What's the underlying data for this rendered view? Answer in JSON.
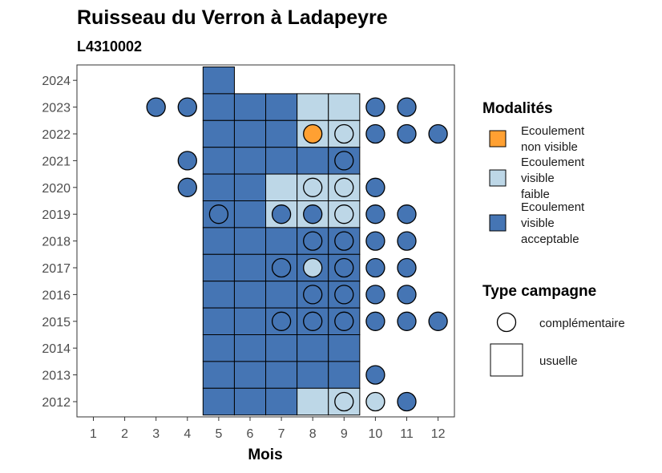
{
  "chart_data": {
    "type": "heatmap",
    "title": "Ruisseau du Verron à Ladapeyre",
    "subtitle": "L4310002",
    "xlabel": "Mois",
    "x_ticks": [
      "1",
      "2",
      "3",
      "4",
      "5",
      "6",
      "7",
      "8",
      "9",
      "10",
      "11",
      "12"
    ],
    "y_ticks": [
      "2012",
      "2013",
      "2014",
      "2015",
      "2016",
      "2017",
      "2018",
      "2019",
      "2020",
      "2021",
      "2022",
      "2023",
      "2024"
    ],
    "colors": {
      "Ecoulement non visible": "#FFA032",
      "Ecoulement visible faible": "#BDD7E7",
      "Ecoulement visible acceptable": "#4575B4"
    },
    "legend_modalites": {
      "title": "Modalités",
      "items": [
        {
          "key": "Ecoulement non visible",
          "lines": [
            "Ecoulement",
            "non visible"
          ]
        },
        {
          "key": "Ecoulement visible faible",
          "lines": [
            "Ecoulement",
            "visible",
            "faible"
          ]
        },
        {
          "key": "Ecoulement visible acceptable",
          "lines": [
            "Ecoulement",
            "visible",
            "acceptable"
          ]
        }
      ]
    },
    "legend_type": {
      "title": "Type campagne",
      "items": [
        {
          "shape": "circle",
          "label": "complémentaire"
        },
        {
          "shape": "square",
          "label": "usuelle"
        }
      ]
    },
    "usuelle": [
      {
        "year": 2024,
        "month": 5,
        "value": "Ecoulement visible acceptable"
      },
      {
        "year": 2023,
        "month": 5,
        "value": "Ecoulement visible acceptable"
      },
      {
        "year": 2023,
        "month": 6,
        "value": "Ecoulement visible acceptable"
      },
      {
        "year": 2023,
        "month": 7,
        "value": "Ecoulement visible acceptable"
      },
      {
        "year": 2023,
        "month": 8,
        "value": "Ecoulement visible faible"
      },
      {
        "year": 2023,
        "month": 9,
        "value": "Ecoulement visible faible"
      },
      {
        "year": 2022,
        "month": 5,
        "value": "Ecoulement visible acceptable"
      },
      {
        "year": 2022,
        "month": 6,
        "value": "Ecoulement visible acceptable"
      },
      {
        "year": 2022,
        "month": 7,
        "value": "Ecoulement visible acceptable"
      },
      {
        "year": 2022,
        "month": 8,
        "value": "Ecoulement visible faible"
      },
      {
        "year": 2022,
        "month": 9,
        "value": "Ecoulement visible faible"
      },
      {
        "year": 2021,
        "month": 5,
        "value": "Ecoulement visible acceptable"
      },
      {
        "year": 2021,
        "month": 6,
        "value": "Ecoulement visible acceptable"
      },
      {
        "year": 2021,
        "month": 7,
        "value": "Ecoulement visible acceptable"
      },
      {
        "year": 2021,
        "month": 8,
        "value": "Ecoulement visible acceptable"
      },
      {
        "year": 2021,
        "month": 9,
        "value": "Ecoulement visible acceptable"
      },
      {
        "year": 2020,
        "month": 5,
        "value": "Ecoulement visible acceptable"
      },
      {
        "year": 2020,
        "month": 6,
        "value": "Ecoulement visible acceptable"
      },
      {
        "year": 2020,
        "month": 7,
        "value": "Ecoulement visible faible"
      },
      {
        "year": 2020,
        "month": 8,
        "value": "Ecoulement visible faible"
      },
      {
        "year": 2020,
        "month": 9,
        "value": "Ecoulement visible faible"
      },
      {
        "year": 2019,
        "month": 5,
        "value": "Ecoulement visible acceptable"
      },
      {
        "year": 2019,
        "month": 6,
        "value": "Ecoulement visible acceptable"
      },
      {
        "year": 2019,
        "month": 7,
        "value": "Ecoulement visible faible"
      },
      {
        "year": 2019,
        "month": 8,
        "value": "Ecoulement visible faible"
      },
      {
        "year": 2019,
        "month": 9,
        "value": "Ecoulement visible faible"
      },
      {
        "year": 2018,
        "month": 5,
        "value": "Ecoulement visible acceptable"
      },
      {
        "year": 2018,
        "month": 6,
        "value": "Ecoulement visible acceptable"
      },
      {
        "year": 2018,
        "month": 7,
        "value": "Ecoulement visible acceptable"
      },
      {
        "year": 2018,
        "month": 8,
        "value": "Ecoulement visible acceptable"
      },
      {
        "year": 2018,
        "month": 9,
        "value": "Ecoulement visible acceptable"
      },
      {
        "year": 2017,
        "month": 5,
        "value": "Ecoulement visible acceptable"
      },
      {
        "year": 2017,
        "month": 6,
        "value": "Ecoulement visible acceptable"
      },
      {
        "year": 2017,
        "month": 7,
        "value": "Ecoulement visible acceptable"
      },
      {
        "year": 2017,
        "month": 8,
        "value": "Ecoulement visible acceptable"
      },
      {
        "year": 2017,
        "month": 9,
        "value": "Ecoulement visible acceptable"
      },
      {
        "year": 2016,
        "month": 5,
        "value": "Ecoulement visible acceptable"
      },
      {
        "year": 2016,
        "month": 6,
        "value": "Ecoulement visible acceptable"
      },
      {
        "year": 2016,
        "month": 7,
        "value": "Ecoulement visible acceptable"
      },
      {
        "year": 2016,
        "month": 8,
        "value": "Ecoulement visible acceptable"
      },
      {
        "year": 2016,
        "month": 9,
        "value": "Ecoulement visible acceptable"
      },
      {
        "year": 2015,
        "month": 5,
        "value": "Ecoulement visible acceptable"
      },
      {
        "year": 2015,
        "month": 6,
        "value": "Ecoulement visible acceptable"
      },
      {
        "year": 2015,
        "month": 7,
        "value": "Ecoulement visible acceptable"
      },
      {
        "year": 2015,
        "month": 8,
        "value": "Ecoulement visible acceptable"
      },
      {
        "year": 2015,
        "month": 9,
        "value": "Ecoulement visible acceptable"
      },
      {
        "year": 2014,
        "month": 5,
        "value": "Ecoulement visible acceptable"
      },
      {
        "year": 2014,
        "month": 6,
        "value": "Ecoulement visible acceptable"
      },
      {
        "year": 2014,
        "month": 7,
        "value": "Ecoulement visible acceptable"
      },
      {
        "year": 2014,
        "month": 8,
        "value": "Ecoulement visible acceptable"
      },
      {
        "year": 2014,
        "month": 9,
        "value": "Ecoulement visible acceptable"
      },
      {
        "year": 2013,
        "month": 5,
        "value": "Ecoulement visible acceptable"
      },
      {
        "year": 2013,
        "month": 6,
        "value": "Ecoulement visible acceptable"
      },
      {
        "year": 2013,
        "month": 7,
        "value": "Ecoulement visible acceptable"
      },
      {
        "year": 2013,
        "month": 8,
        "value": "Ecoulement visible acceptable"
      },
      {
        "year": 2013,
        "month": 9,
        "value": "Ecoulement visible acceptable"
      },
      {
        "year": 2012,
        "month": 5,
        "value": "Ecoulement visible acceptable"
      },
      {
        "year": 2012,
        "month": 6,
        "value": "Ecoulement visible acceptable"
      },
      {
        "year": 2012,
        "month": 7,
        "value": "Ecoulement visible acceptable"
      },
      {
        "year": 2012,
        "month": 8,
        "value": "Ecoulement visible faible"
      },
      {
        "year": 2012,
        "month": 9,
        "value": "Ecoulement visible faible"
      }
    ],
    "complementaire": [
      {
        "year": 2023,
        "month": 3,
        "value": "Ecoulement visible acceptable"
      },
      {
        "year": 2023,
        "month": 4,
        "value": "Ecoulement visible acceptable"
      },
      {
        "year": 2023,
        "month": 10,
        "value": "Ecoulement visible acceptable"
      },
      {
        "year": 2023,
        "month": 11,
        "value": "Ecoulement visible acceptable"
      },
      {
        "year": 2022,
        "month": 8,
        "value": "Ecoulement non visible"
      },
      {
        "year": 2022,
        "month": 9,
        "value": "Ecoulement visible faible"
      },
      {
        "year": 2022,
        "month": 10,
        "value": "Ecoulement visible acceptable"
      },
      {
        "year": 2022,
        "month": 11,
        "value": "Ecoulement visible acceptable"
      },
      {
        "year": 2022,
        "month": 12,
        "value": "Ecoulement visible acceptable"
      },
      {
        "year": 2021,
        "month": 4,
        "value": "Ecoulement visible acceptable"
      },
      {
        "year": 2021,
        "month": 9,
        "value": "Ecoulement visible acceptable"
      },
      {
        "year": 2020,
        "month": 4,
        "value": "Ecoulement visible acceptable"
      },
      {
        "year": 2020,
        "month": 8,
        "value": "Ecoulement visible faible"
      },
      {
        "year": 2020,
        "month": 9,
        "value": "Ecoulement visible faible"
      },
      {
        "year": 2020,
        "month": 10,
        "value": "Ecoulement visible acceptable"
      },
      {
        "year": 2019,
        "month": 5,
        "value": "Ecoulement visible acceptable"
      },
      {
        "year": 2019,
        "month": 7,
        "value": "Ecoulement visible acceptable"
      },
      {
        "year": 2019,
        "month": 8,
        "value": "Ecoulement visible acceptable"
      },
      {
        "year": 2019,
        "month": 9,
        "value": "Ecoulement visible faible"
      },
      {
        "year": 2019,
        "month": 10,
        "value": "Ecoulement visible acceptable"
      },
      {
        "year": 2019,
        "month": 11,
        "value": "Ecoulement visible acceptable"
      },
      {
        "year": 2018,
        "month": 8,
        "value": "Ecoulement visible acceptable"
      },
      {
        "year": 2018,
        "month": 9,
        "value": "Ecoulement visible acceptable"
      },
      {
        "year": 2018,
        "month": 10,
        "value": "Ecoulement visible acceptable"
      },
      {
        "year": 2018,
        "month": 11,
        "value": "Ecoulement visible acceptable"
      },
      {
        "year": 2017,
        "month": 7,
        "value": "Ecoulement visible acceptable"
      },
      {
        "year": 2017,
        "month": 8,
        "value": "Ecoulement visible faible"
      },
      {
        "year": 2017,
        "month": 9,
        "value": "Ecoulement visible acceptable"
      },
      {
        "year": 2017,
        "month": 10,
        "value": "Ecoulement visible acceptable"
      },
      {
        "year": 2017,
        "month": 11,
        "value": "Ecoulement visible acceptable"
      },
      {
        "year": 2016,
        "month": 8,
        "value": "Ecoulement visible acceptable"
      },
      {
        "year": 2016,
        "month": 9,
        "value": "Ecoulement visible acceptable"
      },
      {
        "year": 2016,
        "month": 10,
        "value": "Ecoulement visible acceptable"
      },
      {
        "year": 2016,
        "month": 11,
        "value": "Ecoulement visible acceptable"
      },
      {
        "year": 2015,
        "month": 7,
        "value": "Ecoulement visible acceptable"
      },
      {
        "year": 2015,
        "month": 8,
        "value": "Ecoulement visible acceptable"
      },
      {
        "year": 2015,
        "month": 9,
        "value": "Ecoulement visible acceptable"
      },
      {
        "year": 2015,
        "month": 10,
        "value": "Ecoulement visible acceptable"
      },
      {
        "year": 2015,
        "month": 11,
        "value": "Ecoulement visible acceptable"
      },
      {
        "year": 2015,
        "month": 12,
        "value": "Ecoulement visible acceptable"
      },
      {
        "year": 2013,
        "month": 10,
        "value": "Ecoulement visible acceptable"
      },
      {
        "year": 2012,
        "month": 9,
        "value": "Ecoulement visible faible"
      },
      {
        "year": 2012,
        "month": 10,
        "value": "Ecoulement visible faible"
      },
      {
        "year": 2012,
        "month": 11,
        "value": "Ecoulement visible acceptable"
      }
    ]
  }
}
